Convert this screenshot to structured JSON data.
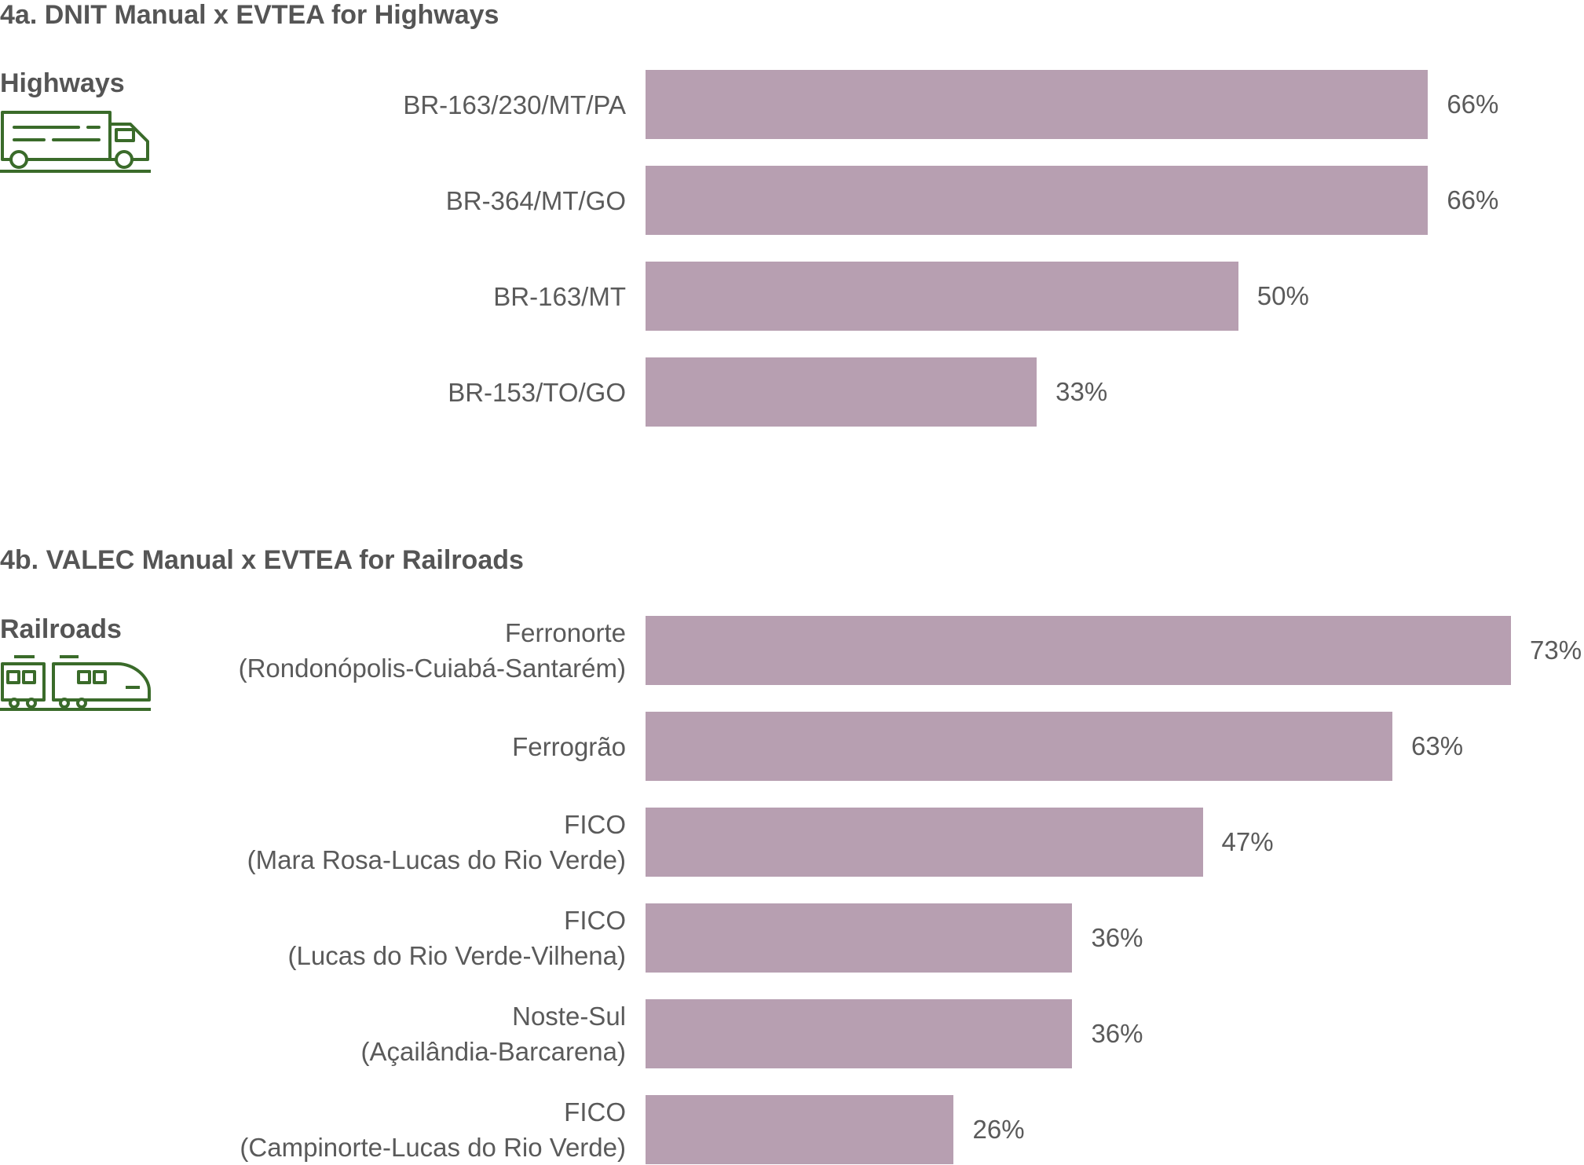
{
  "colors": {
    "bar": "#b79fb1",
    "icon": "#3a6b2a",
    "text": "#555555"
  },
  "chart_data": [
    {
      "type": "bar",
      "orientation": "horizontal",
      "title": "4a. DNIT Manual x EVTEA for Highways",
      "mode_label": "Highways",
      "icon": "truck-icon",
      "categories": [
        [
          "BR-163/230/MT/PA"
        ],
        [
          "BR-364/MT/GO"
        ],
        [
          "BR-163/MT"
        ],
        [
          "BR-153/TO/GO"
        ]
      ],
      "values": [
        66,
        66,
        50,
        33
      ],
      "value_labels": [
        "66%",
        "66%",
        "50%",
        "33%"
      ],
      "xlim": [
        0,
        73
      ],
      "grid": false
    },
    {
      "type": "bar",
      "orientation": "horizontal",
      "title": "4b. VALEC Manual x EVTEA for Railroads",
      "mode_label": "Railroads",
      "icon": "train-icon",
      "categories": [
        [
          "Ferronorte",
          "(Rondonópolis-Cuiabá-Santarém)"
        ],
        [
          "Ferrogrão"
        ],
        [
          "FICO",
          "(Mara Rosa-Lucas do Rio Verde)"
        ],
        [
          "FICO",
          "(Lucas do Rio Verde-Vilhena)"
        ],
        [
          "Noste-Sul",
          "(Açailândia-Barcarena)"
        ],
        [
          "FICO",
          "(Campinorte-Lucas do Rio Verde)"
        ]
      ],
      "values": [
        73,
        63,
        47,
        36,
        36,
        26
      ],
      "value_labels": [
        "73%",
        "63%",
        "47%",
        "36%",
        "36%",
        "26%"
      ],
      "xlim": [
        0,
        73
      ],
      "grid": false
    }
  ]
}
